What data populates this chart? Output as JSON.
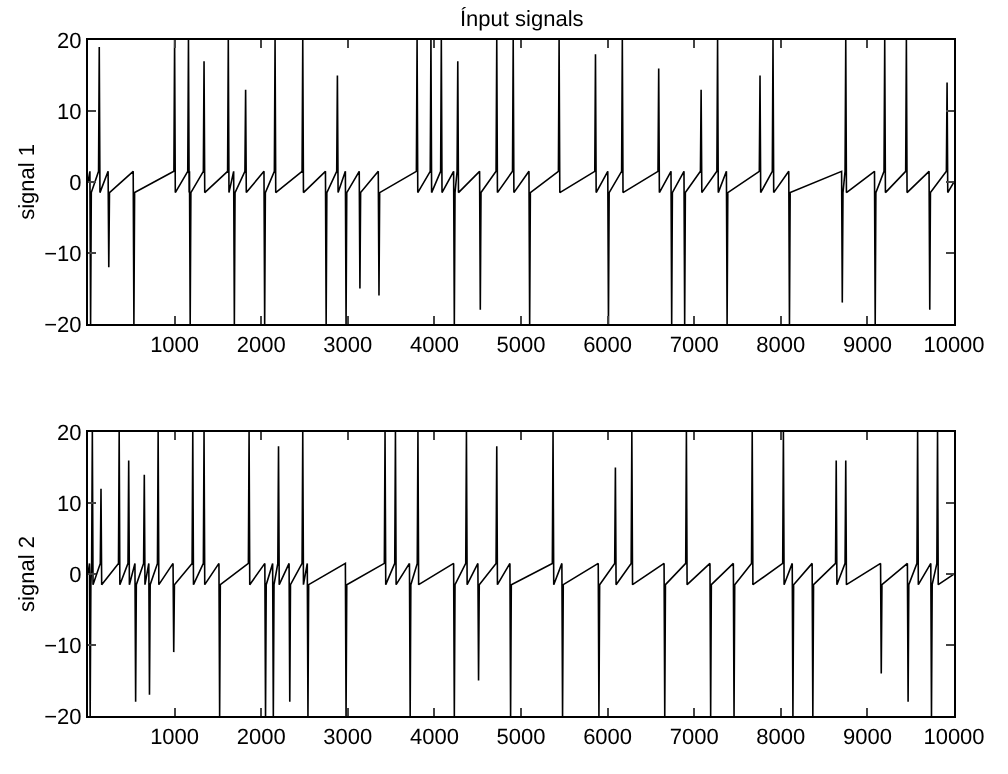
{
  "chart_data": [
    {
      "type": "line",
      "title": "Ínput signals",
      "ylabel": "signal 1",
      "xlim": [
        0,
        10000
      ],
      "xticks": [
        1000,
        2000,
        3000,
        4000,
        5000,
        6000,
        7000,
        8000,
        9000,
        10000
      ],
      "ylim": [
        -20,
        20
      ],
      "yticks": [
        -20,
        -10,
        0,
        10,
        20
      ],
      "grid": false,
      "marker": "none",
      "line_style": "solid",
      "series": [
        {
          "color": "#000000",
          "x": [
            0,
            22,
            30,
            38,
            122,
            130,
            138,
            232,
            240,
            248,
            522,
            530,
            538,
            992,
            1000,
            1008,
            1152,
            1160,
            1168,
            1172,
            1180,
            1188,
            1332,
            1340,
            1348,
            1612,
            1620,
            1628,
            1682,
            1690,
            1698,
            1812,
            1820,
            1828,
            2032,
            2040,
            2048,
            2152,
            2160,
            2168,
            2472,
            2480,
            2488,
            2742,
            2750,
            2758,
            2872,
            2880,
            2888,
            2972,
            2980,
            2988,
            3132,
            3140,
            3148,
            3352,
            3360,
            3368,
            3792,
            3800,
            3808,
            3952,
            3960,
            3968,
            4072,
            4080,
            4088,
            4222,
            4230,
            4238,
            4262,
            4270,
            4278,
            4522,
            4530,
            4538,
            4712,
            4720,
            4728,
            4902,
            4910,
            4918,
            5092,
            5100,
            5108,
            5432,
            5440,
            5448,
            5852,
            5860,
            5868,
            6002,
            6010,
            6018,
            6162,
            6170,
            6178,
            6582,
            6590,
            6598,
            6732,
            6740,
            6748,
            6882,
            6890,
            6898,
            7072,
            7080,
            7088,
            7262,
            7270,
            7278,
            7372,
            7380,
            7388,
            7752,
            7760,
            7768,
            7902,
            7910,
            7918,
            8092,
            8100,
            8108,
            8702,
            8710,
            8718,
            8742,
            8750,
            8758,
            9082,
            9090,
            9098,
            9192,
            9200,
            9208,
            9442,
            9450,
            9458,
            9712,
            9720,
            9728,
            9912,
            9920,
            9928,
            10000
          ],
          "values": [
            0,
            1.5,
            -20,
            -1.5,
            1.5,
            19,
            -1.5,
            1.5,
            -12,
            -1.5,
            1.5,
            -20,
            -1.5,
            1.5,
            20,
            -1.5,
            1.5,
            20,
            -1.5,
            1.5,
            -20,
            -1.5,
            1.5,
            17,
            -1.5,
            1.5,
            20,
            -1.5,
            1.5,
            -20,
            -1.5,
            1.5,
            13,
            -1.5,
            1.5,
            -20,
            -1.5,
            1.5,
            20,
            -1.5,
            1.5,
            20,
            -1.5,
            1.5,
            -20,
            -1.5,
            1.5,
            15,
            -1.5,
            1.5,
            -20,
            -1.5,
            1.5,
            -15,
            -1.5,
            1.5,
            -16,
            -1.5,
            1.5,
            20,
            -1.5,
            1.5,
            20,
            -1.5,
            1.5,
            20,
            -1.5,
            1.5,
            -20,
            -1.5,
            1.5,
            17,
            -1.5,
            1.5,
            -18,
            -1.5,
            1.5,
            20,
            -1.5,
            1.5,
            20,
            -1.5,
            1.5,
            -20,
            -1.5,
            1.5,
            20,
            -1.5,
            1.5,
            18,
            -1.5,
            1.5,
            -20,
            -1.5,
            1.5,
            20,
            -1.5,
            1.5,
            16,
            -1.5,
            1.5,
            -20,
            -1.5,
            1.5,
            -20,
            -1.5,
            1.5,
            13,
            -1.5,
            1.5,
            20,
            -1.5,
            1.5,
            -20,
            -1.5,
            1.5,
            15,
            -1.5,
            1.5,
            20,
            -1.5,
            1.5,
            -20,
            -1.5,
            1.5,
            -17,
            -1.5,
            1.5,
            20,
            -1.5,
            1.5,
            -20,
            -1.5,
            1.5,
            20,
            -1.5,
            1.5,
            20,
            -1.5,
            1.5,
            -18,
            -1.5,
            1.5,
            14,
            -1.5,
            0
          ]
        }
      ]
    },
    {
      "type": "line",
      "ylabel": "signal 2",
      "xlim": [
        0,
        10000
      ],
      "xticks": [
        1000,
        2000,
        3000,
        4000,
        5000,
        6000,
        7000,
        8000,
        9000,
        10000
      ],
      "ylim": [
        -20,
        20
      ],
      "yticks": [
        -20,
        -10,
        0,
        10,
        20
      ],
      "grid": false,
      "marker": "none",
      "line_style": "solid",
      "series": [
        {
          "color": "#000000",
          "x": [
            0,
            17,
            25,
            33,
            42,
            50,
            58,
            142,
            150,
            158,
            352,
            360,
            368,
            462,
            470,
            478,
            542,
            550,
            558,
            642,
            650,
            658,
            702,
            710,
            718,
            802,
            810,
            818,
            982,
            990,
            998,
            1202,
            1210,
            1218,
            1332,
            1340,
            1348,
            1512,
            1520,
            1528,
            1852,
            1860,
            1868,
            2042,
            2050,
            2058,
            2132,
            2140,
            2148,
            2192,
            2200,
            2208,
            2322,
            2330,
            2338,
            2472,
            2480,
            2488,
            2532,
            2540,
            2548,
            2972,
            2980,
            2988,
            3422,
            3430,
            3438,
            3542,
            3550,
            3558,
            3712,
            3720,
            3728,
            3802,
            3810,
            3818,
            4222,
            4230,
            4238,
            4362,
            4370,
            4378,
            4502,
            4510,
            4518,
            4712,
            4720,
            4728,
            4872,
            4880,
            4888,
            5362,
            5370,
            5378,
            5472,
            5480,
            5488,
            5892,
            5900,
            5908,
            6082,
            6090,
            6098,
            6272,
            6280,
            6288,
            6652,
            6660,
            6668,
            6902,
            6910,
            6918,
            7182,
            7190,
            7198,
            7452,
            7460,
            7468,
            7662,
            7670,
            7678,
            8022,
            8030,
            8038,
            8132,
            8140,
            8148,
            8362,
            8370,
            8378,
            8632,
            8640,
            8648,
            8742,
            8750,
            8758,
            9152,
            9160,
            9168,
            9462,
            9470,
            9478,
            9572,
            9580,
            9588,
            9732,
            9740,
            9748,
            9802,
            9810,
            9818,
            10000
          ],
          "values": [
            0,
            1.5,
            -20,
            -1.5,
            1.5,
            20,
            -1.5,
            1.5,
            12,
            -1.5,
            1.5,
            20,
            -1.5,
            1.5,
            16,
            -1.5,
            1.5,
            -18,
            -1.5,
            1.5,
            14,
            -1.5,
            1.5,
            -17,
            -1.5,
            1.5,
            20,
            -1.5,
            1.5,
            -11,
            -1.5,
            1.5,
            20,
            -1.5,
            1.5,
            20,
            -1.5,
            1.5,
            -20,
            -1.5,
            1.5,
            20,
            -1.5,
            1.5,
            -20,
            -1.5,
            1.5,
            -20,
            -1.5,
            1.5,
            18,
            -1.5,
            1.5,
            -18,
            -1.5,
            1.5,
            20,
            -1.5,
            1.5,
            -20,
            -1.5,
            1.5,
            -20,
            -1.5,
            1.5,
            20,
            -1.5,
            1.5,
            20,
            -1.5,
            1.5,
            -20,
            -1.5,
            1.5,
            20,
            -1.5,
            1.5,
            -20,
            -1.5,
            1.5,
            20,
            -1.5,
            1.5,
            -15,
            -1.5,
            1.5,
            18,
            -1.5,
            1.5,
            -20,
            -1.5,
            1.5,
            20,
            -1.5,
            1.5,
            -20,
            -1.5,
            1.5,
            -20,
            -1.5,
            1.5,
            15,
            -1.5,
            1.5,
            20,
            -1.5,
            1.5,
            -20,
            -1.5,
            1.5,
            20,
            -1.5,
            1.5,
            -20,
            -1.5,
            1.5,
            -20,
            -1.5,
            1.5,
            20,
            -1.5,
            1.5,
            20,
            -1.5,
            1.5,
            -20,
            -1.5,
            1.5,
            -20,
            -1.5,
            1.5,
            16,
            -1.5,
            1.5,
            16,
            -1.5,
            1.5,
            -14,
            -1.5,
            1.5,
            -18,
            -1.5,
            1.5,
            20,
            -1.5,
            1.5,
            -20,
            -1.5,
            1.5,
            20,
            -1.5,
            0
          ]
        }
      ]
    }
  ]
}
